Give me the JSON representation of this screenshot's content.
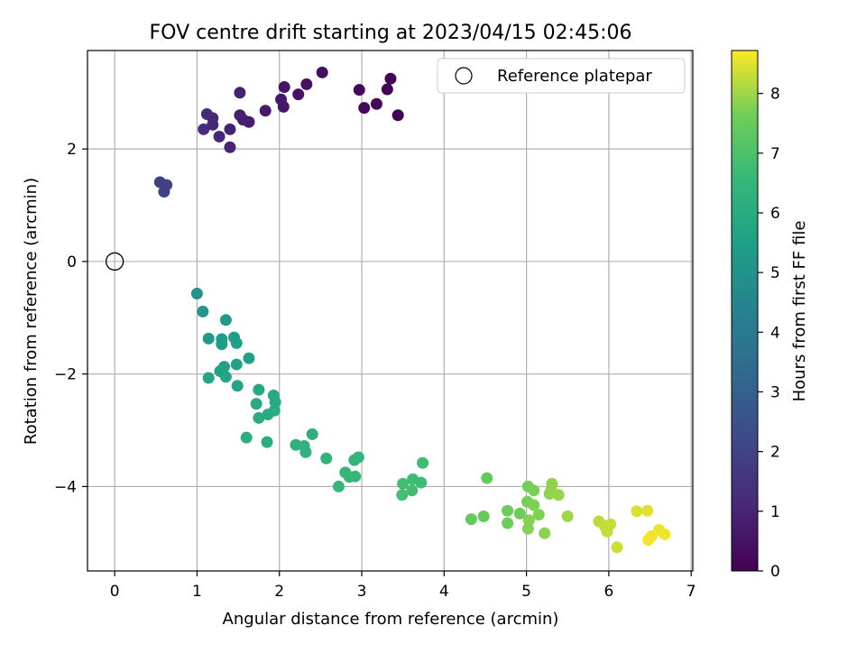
{
  "chart_data": {
    "type": "scatter",
    "title": "FOV centre drift starting at 2023/04/15 02:45:06",
    "xlabel": "Angular distance from reference (arcmin)",
    "ylabel": "Rotation from reference (arcmin)",
    "xlim": [
      -0.33,
      7.02
    ],
    "ylim": [
      -5.5,
      3.75
    ],
    "xticks": [
      0,
      1,
      2,
      3,
      4,
      5,
      6,
      7
    ],
    "yticks": [
      -4,
      -2,
      0,
      2
    ],
    "grid": true,
    "legend": {
      "position": "top-right",
      "entries": [
        "Reference platepar"
      ]
    },
    "colorbar": {
      "label": "Hours from first FF file",
      "colormap": "viridis",
      "range": [
        0,
        8.72
      ],
      "ticks": [
        0,
        1,
        2,
        3,
        4,
        5,
        6,
        7,
        8
      ]
    },
    "reference_point": {
      "x": 0,
      "y": 0
    },
    "points": [
      {
        "x": 3.44,
        "y": 2.6,
        "t": 0.05
      },
      {
        "x": 3.35,
        "y": 3.25,
        "t": 0.08
      },
      {
        "x": 3.31,
        "y": 3.06,
        "t": 0.12
      },
      {
        "x": 3.18,
        "y": 2.8,
        "t": 0.15
      },
      {
        "x": 3.03,
        "y": 2.73,
        "t": 0.18
      },
      {
        "x": 2.97,
        "y": 3.05,
        "t": 0.22
      },
      {
        "x": 2.52,
        "y": 3.36,
        "t": 0.4
      },
      {
        "x": 2.33,
        "y": 3.15,
        "t": 0.45
      },
      {
        "x": 2.23,
        "y": 2.97,
        "t": 0.5
      },
      {
        "x": 2.06,
        "y": 3.1,
        "t": 0.55
      },
      {
        "x": 2.05,
        "y": 2.75,
        "t": 0.58
      },
      {
        "x": 2.02,
        "y": 2.88,
        "t": 0.6
      },
      {
        "x": 1.83,
        "y": 2.68,
        "t": 0.7
      },
      {
        "x": 1.63,
        "y": 2.48,
        "t": 0.78
      },
      {
        "x": 1.56,
        "y": 2.52,
        "t": 0.82
      },
      {
        "x": 1.52,
        "y": 2.6,
        "t": 0.85
      },
      {
        "x": 1.52,
        "y": 3.0,
        "t": 0.88
      },
      {
        "x": 1.4,
        "y": 2.35,
        "t": 0.95
      },
      {
        "x": 1.4,
        "y": 2.03,
        "t": 1.0
      },
      {
        "x": 1.27,
        "y": 2.22,
        "t": 1.05
      },
      {
        "x": 1.19,
        "y": 2.55,
        "t": 1.1
      },
      {
        "x": 1.19,
        "y": 2.43,
        "t": 1.12
      },
      {
        "x": 1.12,
        "y": 2.62,
        "t": 1.15
      },
      {
        "x": 1.08,
        "y": 2.35,
        "t": 1.2
      },
      {
        "x": 0.55,
        "y": 1.41,
        "t": 1.85
      },
      {
        "x": 0.63,
        "y": 1.36,
        "t": 1.9
      },
      {
        "x": 0.6,
        "y": 1.24,
        "t": 1.95
      },
      {
        "x": 1.0,
        "y": -0.57,
        "t": 5.1
      },
      {
        "x": 1.07,
        "y": -0.89,
        "t": 5.2
      },
      {
        "x": 1.35,
        "y": -1.04,
        "t": 5.3
      },
      {
        "x": 1.14,
        "y": -1.37,
        "t": 5.35
      },
      {
        "x": 1.3,
        "y": -1.38,
        "t": 5.4
      },
      {
        "x": 1.3,
        "y": -1.47,
        "t": 5.4
      },
      {
        "x": 1.45,
        "y": -1.35,
        "t": 5.45
      },
      {
        "x": 1.48,
        "y": -1.45,
        "t": 5.5
      },
      {
        "x": 1.63,
        "y": -1.72,
        "t": 5.55
      },
      {
        "x": 1.48,
        "y": -1.83,
        "t": 5.6
      },
      {
        "x": 1.33,
        "y": -1.87,
        "t": 5.6
      },
      {
        "x": 1.28,
        "y": -1.95,
        "t": 5.65
      },
      {
        "x": 1.35,
        "y": -2.05,
        "t": 5.7
      },
      {
        "x": 1.14,
        "y": -2.07,
        "t": 5.7
      },
      {
        "x": 1.49,
        "y": -2.21,
        "t": 5.75
      },
      {
        "x": 1.75,
        "y": -2.28,
        "t": 5.85
      },
      {
        "x": 1.93,
        "y": -2.38,
        "t": 5.9
      },
      {
        "x": 1.95,
        "y": -2.5,
        "t": 5.95
      },
      {
        "x": 1.72,
        "y": -2.53,
        "t": 5.95
      },
      {
        "x": 1.94,
        "y": -2.65,
        "t": 6.0
      },
      {
        "x": 1.86,
        "y": -2.72,
        "t": 6.0
      },
      {
        "x": 1.75,
        "y": -2.78,
        "t": 6.05
      },
      {
        "x": 1.6,
        "y": -3.13,
        "t": 6.1
      },
      {
        "x": 1.85,
        "y": -3.21,
        "t": 6.1
      },
      {
        "x": 2.4,
        "y": -3.07,
        "t": 6.2
      },
      {
        "x": 2.2,
        "y": -3.26,
        "t": 6.25
      },
      {
        "x": 2.3,
        "y": -3.28,
        "t": 6.3
      },
      {
        "x": 2.32,
        "y": -3.39,
        "t": 6.3
      },
      {
        "x": 2.57,
        "y": -3.5,
        "t": 6.35
      },
      {
        "x": 2.96,
        "y": -3.48,
        "t": 6.4
      },
      {
        "x": 2.91,
        "y": -3.53,
        "t": 6.45
      },
      {
        "x": 2.8,
        "y": -3.75,
        "t": 6.5
      },
      {
        "x": 2.85,
        "y": -3.83,
        "t": 6.5
      },
      {
        "x": 2.92,
        "y": -3.82,
        "t": 6.55
      },
      {
        "x": 2.72,
        "y": -4.0,
        "t": 6.55
      },
      {
        "x": 3.74,
        "y": -3.58,
        "t": 6.7
      },
      {
        "x": 3.62,
        "y": -3.87,
        "t": 6.75
      },
      {
        "x": 3.72,
        "y": -3.93,
        "t": 6.75
      },
      {
        "x": 3.5,
        "y": -3.95,
        "t": 6.8
      },
      {
        "x": 3.61,
        "y": -4.07,
        "t": 6.8
      },
      {
        "x": 3.49,
        "y": -4.15,
        "t": 6.85
      },
      {
        "x": 4.52,
        "y": -3.85,
        "t": 7.4
      },
      {
        "x": 4.33,
        "y": -4.58,
        "t": 7.45
      },
      {
        "x": 4.48,
        "y": -4.53,
        "t": 7.5
      },
      {
        "x": 4.77,
        "y": -4.43,
        "t": 7.55
      },
      {
        "x": 4.77,
        "y": -4.65,
        "t": 7.55
      },
      {
        "x": 4.92,
        "y": -4.48,
        "t": 7.6
      },
      {
        "x": 5.02,
        "y": -4.0,
        "t": 7.65
      },
      {
        "x": 5.09,
        "y": -4.07,
        "t": 7.7
      },
      {
        "x": 5.01,
        "y": -4.27,
        "t": 7.7
      },
      {
        "x": 5.09,
        "y": -4.33,
        "t": 7.75
      },
      {
        "x": 5.15,
        "y": -4.5,
        "t": 7.75
      },
      {
        "x": 5.03,
        "y": -4.6,
        "t": 7.8
      },
      {
        "x": 5.02,
        "y": -4.75,
        "t": 7.8
      },
      {
        "x": 5.22,
        "y": -4.83,
        "t": 7.85
      },
      {
        "x": 5.31,
        "y": -3.95,
        "t": 7.85
      },
      {
        "x": 5.3,
        "y": -4.07,
        "t": 7.9
      },
      {
        "x": 5.28,
        "y": -4.13,
        "t": 7.9
      },
      {
        "x": 5.39,
        "y": -4.15,
        "t": 7.95
      },
      {
        "x": 5.5,
        "y": -4.53,
        "t": 8.0
      },
      {
        "x": 5.88,
        "y": -4.62,
        "t": 8.2
      },
      {
        "x": 5.95,
        "y": -4.7,
        "t": 8.25
      },
      {
        "x": 6.02,
        "y": -4.67,
        "t": 8.3
      },
      {
        "x": 5.98,
        "y": -4.8,
        "t": 8.3
      },
      {
        "x": 6.1,
        "y": -5.08,
        "t": 8.35
      },
      {
        "x": 6.34,
        "y": -4.44,
        "t": 8.45
      },
      {
        "x": 6.47,
        "y": -4.43,
        "t": 8.5
      },
      {
        "x": 6.61,
        "y": -4.77,
        "t": 8.55
      },
      {
        "x": 6.68,
        "y": -4.85,
        "t": 8.6
      },
      {
        "x": 6.52,
        "y": -4.88,
        "t": 8.6
      },
      {
        "x": 6.48,
        "y": -4.95,
        "t": 8.65
      }
    ]
  }
}
